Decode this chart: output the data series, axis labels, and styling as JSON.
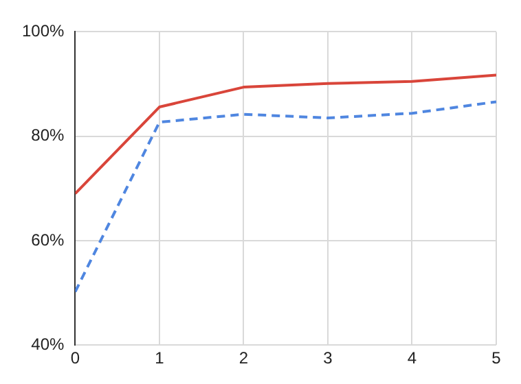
{
  "chart_data": {
    "type": "line",
    "x": [
      0,
      1,
      2,
      3,
      4,
      5
    ],
    "xlim": [
      0,
      5
    ],
    "xticks": [
      0,
      1,
      2,
      3,
      4,
      5
    ],
    "ylim": [
      40,
      100
    ],
    "yticks": [
      {
        "value": 40,
        "label": "40%"
      },
      {
        "value": 60,
        "label": "60%"
      },
      {
        "value": 80,
        "label": "80%"
      },
      {
        "value": 100,
        "label": "100%"
      }
    ],
    "grid": true,
    "legend": false,
    "marker": "none",
    "series": [
      {
        "color": "#d9453a",
        "line_style": "solid",
        "values": [
          69,
          85.6,
          89.4,
          90.1,
          90.5,
          91.7
        ]
      },
      {
        "color": "#4f86e0",
        "line_style": "dashed",
        "values": [
          50.2,
          82.7,
          84.2,
          83.5,
          84.4,
          86.6
        ]
      }
    ]
  }
}
